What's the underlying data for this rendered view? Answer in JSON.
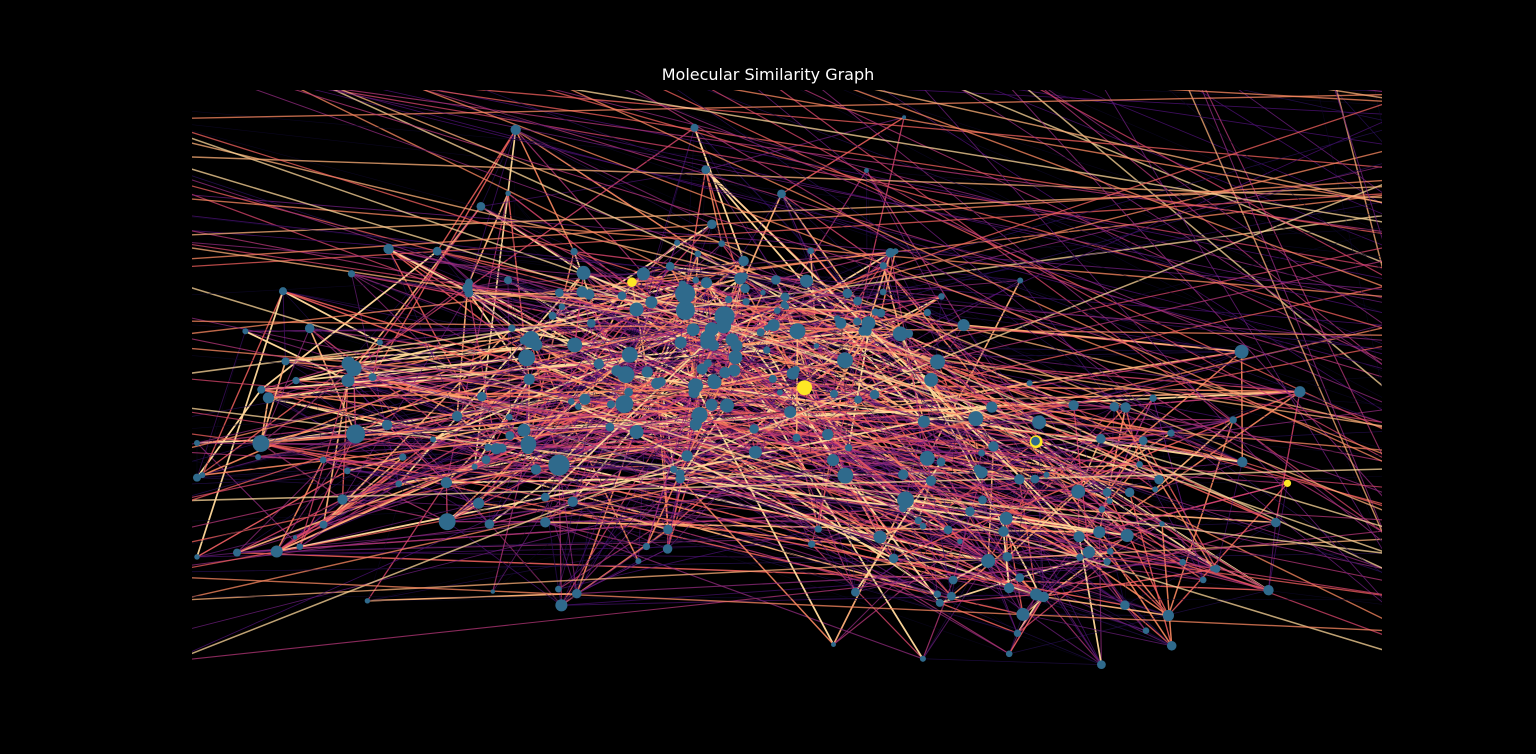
{
  "title": "Molecular Similarity Graph",
  "colors": {
    "background": "#000000",
    "title_text": "#ffffff",
    "node_default": "#2f6a8c",
    "node_highlight": "#fde725",
    "edge_colormap": [
      "#0d0829",
      "#2c115f",
      "#51127c",
      "#721f81",
      "#932b80",
      "#b73779",
      "#d8456c",
      "#f1605d",
      "#fc8961",
      "#feb078",
      "#fed799"
    ]
  },
  "graph": {
    "node_count": 300,
    "edge_count": 1800,
    "highlighted_node_count": 4
  }
}
